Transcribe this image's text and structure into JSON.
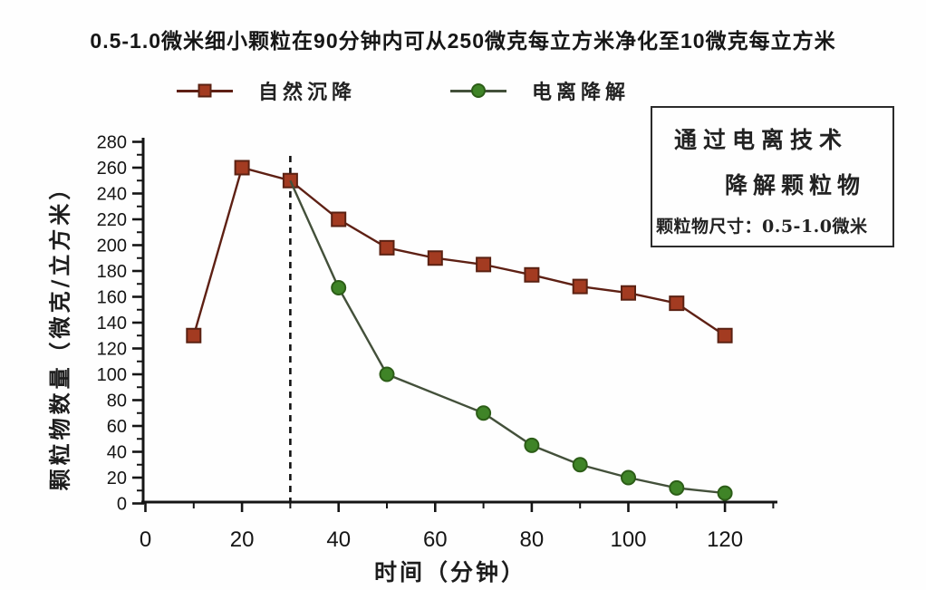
{
  "chart_data": {
    "type": "line",
    "title": "0.5-1.0微米细小颗粒在90分钟内可从250微克每立方米净化至10微克每立方米",
    "xlabel": "时间（分钟）",
    "ylabel": "颗粒物数量（微克/立方米）",
    "xlim": [
      0,
      130
    ],
    "ylim": [
      0,
      280
    ],
    "grid": "off",
    "legend_position": "top",
    "x_major_ticks": [
      0,
      20,
      40,
      60,
      80,
      100,
      120
    ],
    "x_minor_ticks": [
      10,
      30,
      50,
      70,
      90,
      110,
      130
    ],
    "y_major_ticks": [
      0,
      20,
      40,
      60,
      80,
      100,
      120,
      140,
      160,
      180,
      200,
      220,
      240,
      260,
      280
    ],
    "y_minor_ticks": [
      10,
      30,
      50,
      70,
      90,
      110,
      130,
      150,
      170,
      190,
      210,
      230,
      250,
      270
    ],
    "dashed_vline_x": 30,
    "series": [
      {
        "id": "natural-settling",
        "name": "自然沉降",
        "marker": "square",
        "color": "#a33b21",
        "edge_color": "#5a2112",
        "line_color": "#5e2014",
        "points": [
          [
            10,
            130
          ],
          [
            20,
            260
          ],
          [
            30,
            250
          ],
          [
            40,
            220
          ],
          [
            50,
            198
          ],
          [
            60,
            190
          ],
          [
            70,
            185
          ],
          [
            80,
            177
          ],
          [
            90,
            168
          ],
          [
            100,
            163
          ],
          [
            110,
            155
          ],
          [
            120,
            130
          ]
        ],
        "skip_marker_indices": []
      },
      {
        "id": "ionization-degradation",
        "name": "电离降解",
        "marker": "circle",
        "color": "#3f8427",
        "edge_color": "#2c5d17",
        "line_color": "#43503a",
        "points": [
          [
            30,
            250
          ],
          [
            40,
            167
          ],
          [
            50,
            100
          ],
          [
            70,
            70
          ],
          [
            80,
            45
          ],
          [
            90,
            30
          ],
          [
            100,
            20
          ],
          [
            110,
            12
          ],
          [
            120,
            8
          ]
        ],
        "skip_marker_indices": [
          0
        ]
      }
    ]
  },
  "info_box": {
    "line1": "通过电离技术",
    "line2": "降解颗粒物",
    "line3": "颗粒物尺寸：0.5-1.0微米"
  }
}
